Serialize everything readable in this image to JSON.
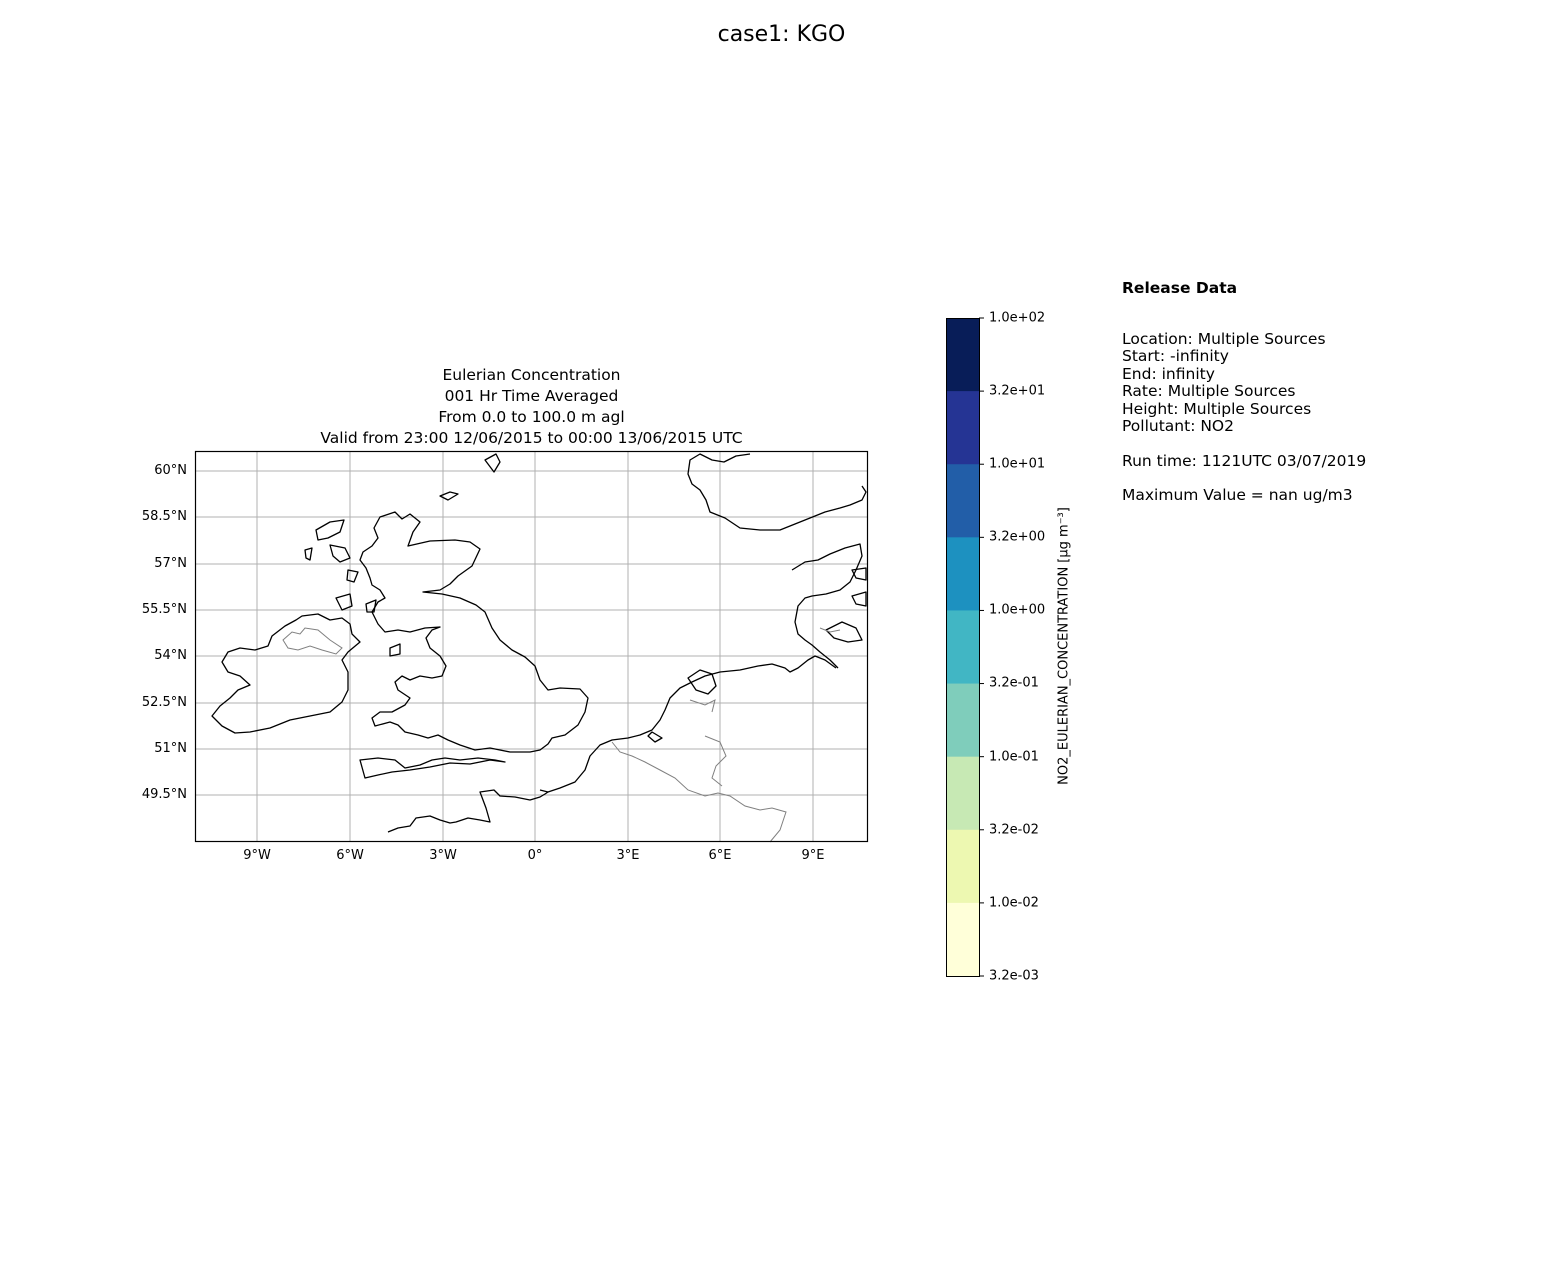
{
  "figure": {
    "suptitle": "case1: KGO"
  },
  "map": {
    "title_lines": [
      "Eulerian Concentration",
      "001 Hr Time Averaged",
      "From 0.0 to 100.0 m agl",
      "Valid from 23:00 12/06/2015 to 00:00 13/06/2015 UTC"
    ],
    "lat_ticks": [
      "60°N",
      "58.5°N",
      "57°N",
      "55.5°N",
      "54°N",
      "52.5°N",
      "51°N",
      "49.5°N"
    ],
    "lon_ticks": [
      "9°W",
      "6°W",
      "3°W",
      "0°",
      "3°E",
      "6°E",
      "9°E"
    ],
    "extent": {
      "lon": [
        -11,
        10.8
      ],
      "lat": [
        48.5,
        61.1
      ]
    },
    "grid": true
  },
  "colorbar": {
    "label": "NO2_EULERIAN_CONCENTRATION [μg m⁻³]",
    "ticks": [
      "1.0e+02",
      "3.2e+01",
      "1.0e+01",
      "3.2e+00",
      "1.0e+00",
      "3.2e-01",
      "1.0e-01",
      "3.2e-02",
      "1.0e-02",
      "3.2e-03"
    ],
    "colors": [
      "#081d58",
      "#253494",
      "#225ea8",
      "#1d91c0",
      "#41b6c4",
      "#7fcdbb",
      "#c7e9b4",
      "#edf8b1",
      "#ffffd9"
    ]
  },
  "release": {
    "heading": "Release Data",
    "location": "Location: Multiple Sources",
    "start": "Start: -infinity",
    "end": "End: infinity",
    "rate": "Rate: Multiple Sources",
    "height": "Height: Multiple Sources",
    "pollutant": "Pollutant: NO2",
    "run_time": "Run time: 1121UTC 03/07/2019",
    "max_value": "Maximum Value = nan ug/m3"
  }
}
